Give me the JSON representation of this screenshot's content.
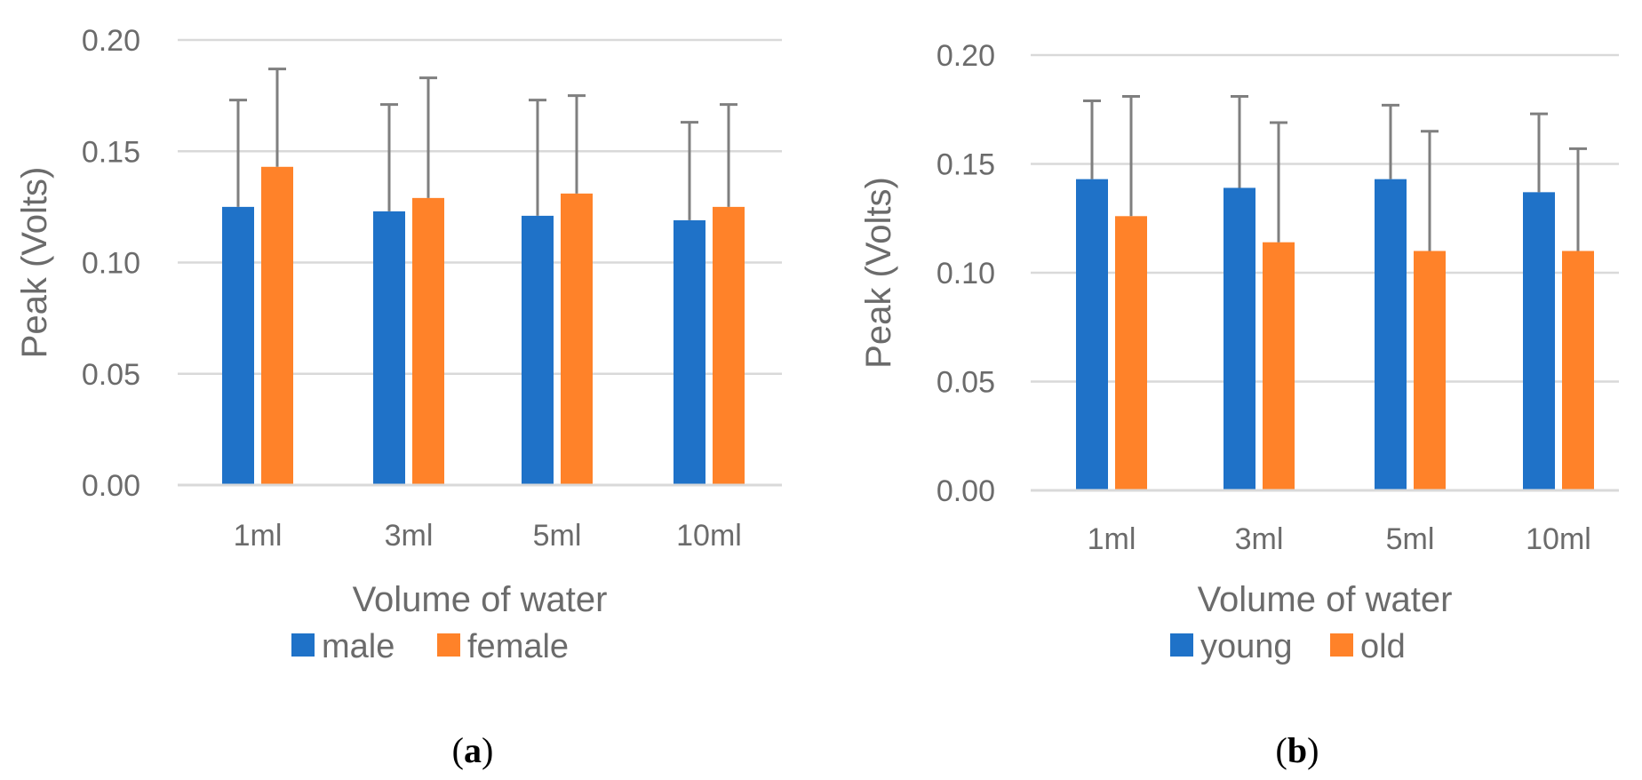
{
  "chart_data": [
    {
      "type": "bar",
      "panel_label_open": "(",
      "panel_label_letter": "a",
      "panel_label_close": ")",
      "categories": [
        "1ml",
        "3ml",
        "5ml",
        "10ml"
      ],
      "series": [
        {
          "name": "male",
          "color": "#1f72c8",
          "values": [
            0.125,
            0.123,
            0.121,
            0.119
          ],
          "error": [
            0.048,
            0.048,
            0.052,
            0.044
          ]
        },
        {
          "name": "female",
          "color": "#ff8229",
          "values": [
            0.143,
            0.129,
            0.131,
            0.125
          ],
          "error": [
            0.044,
            0.054,
            0.044,
            0.046
          ]
        }
      ],
      "xlabel": "Volume of water",
      "ylabel": "Peak (Volts)",
      "ylim": [
        0,
        0.2
      ],
      "yticks": [
        "0.00",
        "0.05",
        "0.10",
        "0.15",
        "0.20"
      ],
      "grid": true,
      "legend_position": "bottom"
    },
    {
      "type": "bar",
      "panel_label_open": "(",
      "panel_label_letter": "b",
      "panel_label_close": ")",
      "categories": [
        "1ml",
        "3ml",
        "5ml",
        "10ml"
      ],
      "series": [
        {
          "name": "young",
          "color": "#1f72c8",
          "values": [
            0.143,
            0.139,
            0.143,
            0.137
          ],
          "error": [
            0.036,
            0.042,
            0.034,
            0.036
          ]
        },
        {
          "name": "old",
          "color": "#ff8229",
          "values": [
            0.126,
            0.114,
            0.11,
            0.11
          ],
          "error": [
            0.055,
            0.055,
            0.055,
            0.047
          ]
        }
      ],
      "xlabel": "Volume of water",
      "ylabel": "Peak (Volts)",
      "ylim": [
        0,
        0.2
      ],
      "yticks": [
        "0.00",
        "0.05",
        "0.10",
        "0.15",
        "0.20"
      ],
      "grid": true,
      "legend_position": "bottom"
    }
  ]
}
